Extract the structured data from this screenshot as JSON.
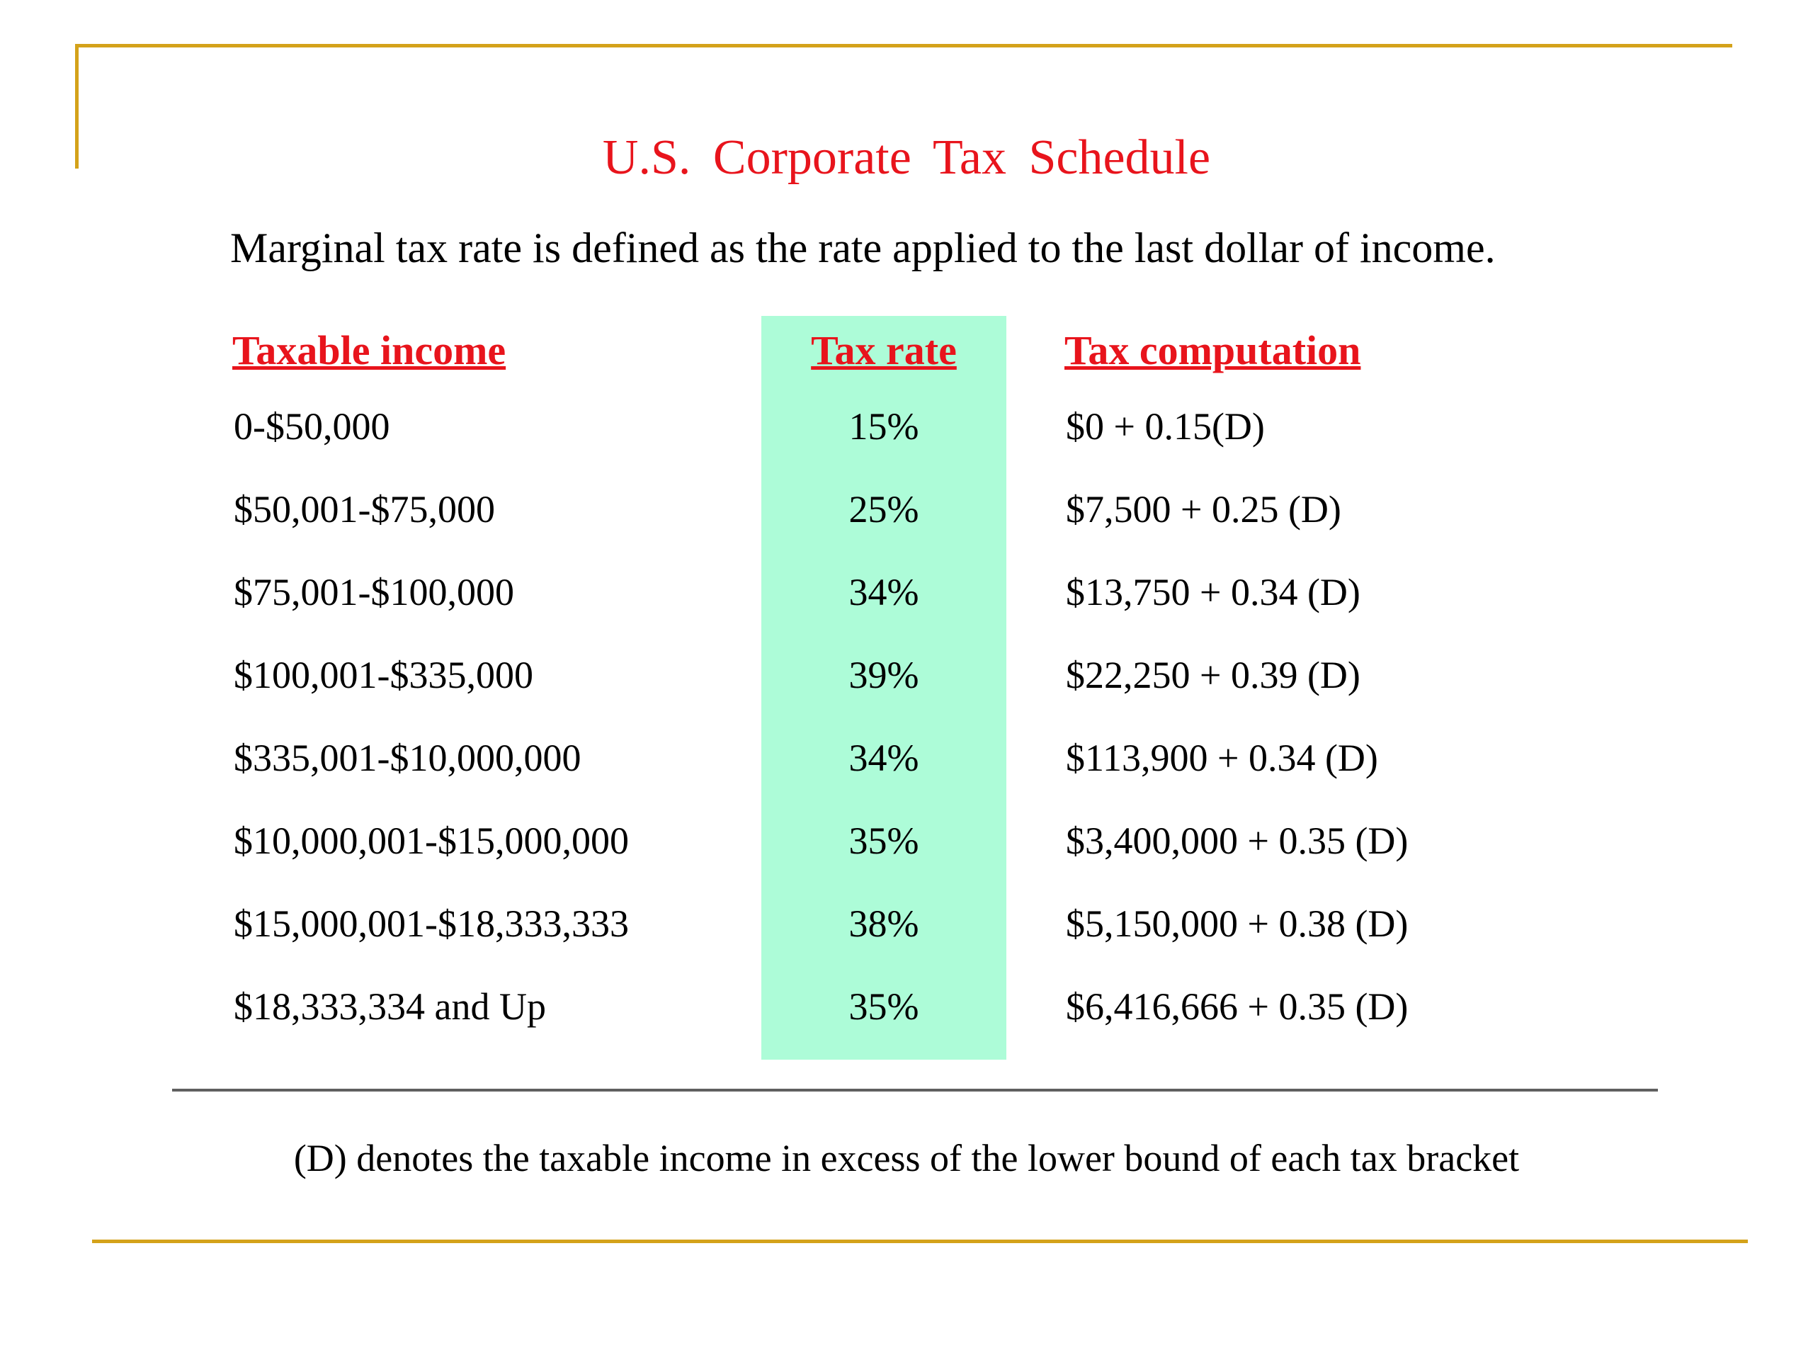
{
  "slide": {
    "title": "U.S. Corporate Tax Schedule",
    "subtitle": "Marginal tax rate is defined as the rate applied to the last dollar of income.",
    "footnote": "(D) denotes the taxable income in excess of the lower bound of each tax bracket"
  },
  "colors": {
    "accent_red": "#e8141c",
    "frame_gold": "#d4a21a",
    "rate_highlight": "#adfcd8"
  },
  "table": {
    "headers": {
      "income": "Taxable income",
      "rate": "Tax rate",
      "computation": "Tax computation"
    },
    "rows": [
      {
        "income": "0-$50,000",
        "rate": "15%",
        "computation": "$0 + 0.15(D)"
      },
      {
        "income": "$50,001-$75,000",
        "rate": "25%",
        "computation": "$7,500 + 0.25 (D)"
      },
      {
        "income": "$75,001-$100,000",
        "rate": "34%",
        "computation": "$13,750 + 0.34 (D)"
      },
      {
        "income": "$100,001-$335,000",
        "rate": "39%",
        "computation": "$22,250 + 0.39 (D)"
      },
      {
        "income": "$335,001-$10,000,000",
        "rate": "34%",
        "computation": "$113,900 + 0.34 (D)"
      },
      {
        "income": "$10,000,001-$15,000,000",
        "rate": "35%",
        "computation": "$3,400,000 + 0.35 (D)"
      },
      {
        "income": "$15,000,001-$18,333,333",
        "rate": "38%",
        "computation": "$5,150,000 + 0.38 (D)"
      },
      {
        "income": "$18,333,334 and Up",
        "rate": "35%",
        "computation": "$6,416,666 + 0.35 (D)"
      }
    ]
  }
}
